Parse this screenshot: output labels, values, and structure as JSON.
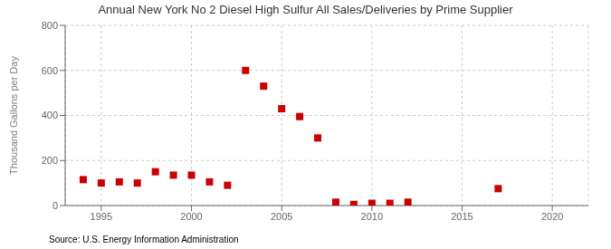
{
  "chart_data": {
    "type": "scatter",
    "title": "Annual New York No 2 Diesel High Sulfur All Sales/Deliveries by Prime Supplier",
    "ylabel": "Thousand Gallons per Day",
    "source": "Source: U.S. Energy Information Administration",
    "x": [
      1994,
      1995,
      1996,
      1997,
      1998,
      1999,
      2000,
      2001,
      2002,
      2003,
      2004,
      2005,
      2006,
      2007,
      2008,
      2009,
      2010,
      2011,
      2012,
      2017
    ],
    "values": [
      115,
      100,
      105,
      100,
      150,
      135,
      135,
      105,
      90,
      600,
      530,
      430,
      395,
      300,
      15,
      5,
      10,
      10,
      15,
      75
    ],
    "color": "#cc0000",
    "marker": "square",
    "xlim": [
      1993,
      2022
    ],
    "xticks": [
      1995,
      2000,
      2005,
      2010,
      2015,
      2020
    ],
    "ylim": [
      0,
      800
    ],
    "yticks": [
      0,
      200,
      400,
      600,
      800
    ],
    "grid": true
  }
}
